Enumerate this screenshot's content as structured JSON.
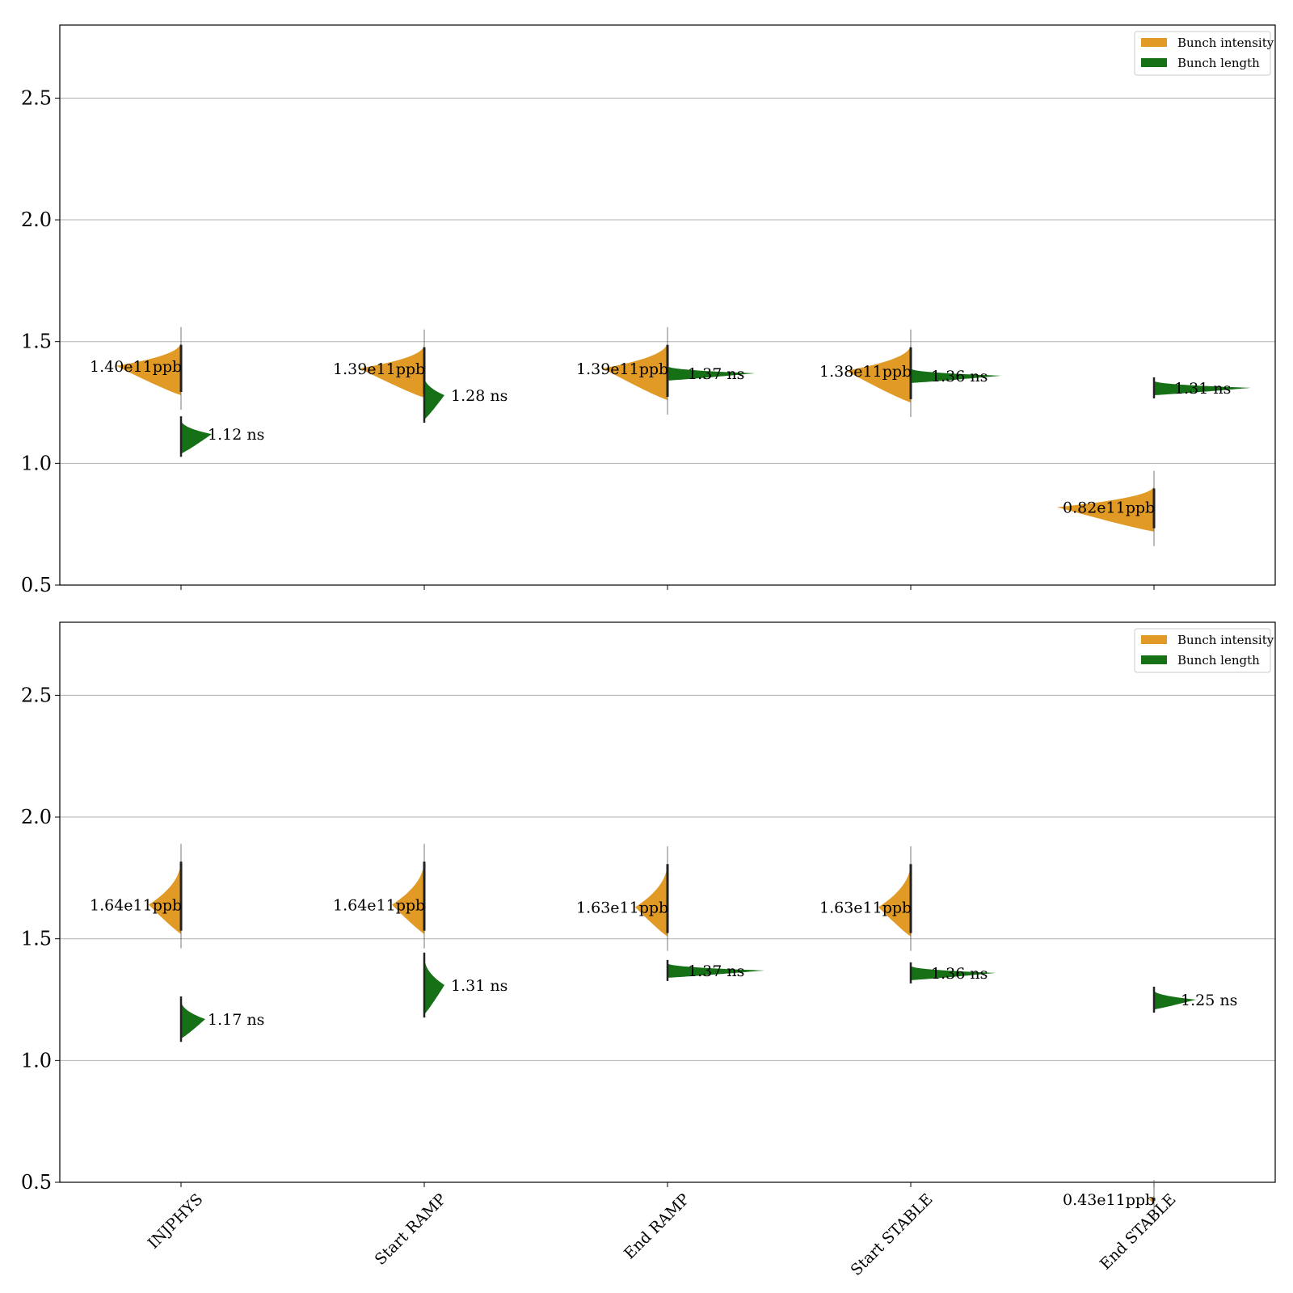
{
  "colors": {
    "intensity": "#e09a25",
    "length": "#167016",
    "grid": "#b0b0b0",
    "axis": "#000000"
  },
  "legend": {
    "placement": "top-right",
    "items": [
      {
        "label": "Bunch intensity",
        "color_key": "intensity"
      },
      {
        "label": "Bunch length",
        "color_key": "length"
      }
    ]
  },
  "chart_data": [
    {
      "type": "violin",
      "categories": [
        "INJPHYS",
        "Start RAMP",
        "End RAMP",
        "Start STABLE",
        "End STABLE"
      ],
      "ylim": [
        0.5,
        2.8
      ],
      "yticks": [
        "0.5",
        "1.0",
        "1.5",
        "2.0",
        "2.5"
      ],
      "grid": true,
      "series": [
        {
          "name": "Bunch intensity",
          "side": "left",
          "values": [
            1.4,
            1.39,
            1.39,
            1.38,
            0.82
          ],
          "labels": [
            "1.40e11ppb",
            "1.39e11ppb",
            "1.39e11ppb",
            "1.38e11ppb",
            "0.82e11ppb"
          ]
        },
        {
          "name": "Bunch length",
          "side": "right",
          "values": [
            1.12,
            1.28,
            1.37,
            1.36,
            1.31
          ],
          "labels": [
            "1.12 ns",
            "1.28 ns",
            "1.37 ns",
            "1.36 ns",
            "1.31 ns"
          ]
        }
      ]
    },
    {
      "type": "violin",
      "categories": [
        "INJPHYS",
        "Start RAMP",
        "End RAMP",
        "Start STABLE",
        "End STABLE"
      ],
      "ylim": [
        0.5,
        2.8
      ],
      "yticks": [
        "0.5",
        "1.0",
        "1.5",
        "2.0",
        "2.5"
      ],
      "grid": true,
      "series": [
        {
          "name": "Bunch intensity",
          "side": "left",
          "values": [
            1.64,
            1.64,
            1.63,
            1.63,
            0.43
          ],
          "labels": [
            "1.64e11ppb",
            "1.64e11ppb",
            "1.63e11ppb",
            "1.63e11ppb",
            "0.43e11ppb"
          ]
        },
        {
          "name": "Bunch length",
          "side": "right",
          "values": [
            1.17,
            1.31,
            1.37,
            1.36,
            1.25
          ],
          "labels": [
            "1.17 ns",
            "1.31 ns",
            "1.37 ns",
            "1.36 ns",
            "1.25 ns"
          ]
        }
      ]
    }
  ]
}
